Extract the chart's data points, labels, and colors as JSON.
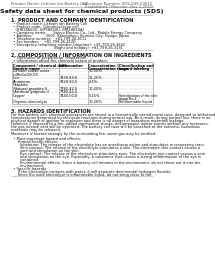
{
  "bg_color": "#ffffff",
  "header_left": "Product Name: Lithium Ion Battery Cell",
  "header_right_line1": "Substance Number: SDS-049-00610",
  "header_right_line2": "Established / Revision: Dec.1.2010",
  "title": "Safety data sheet for chemical products (SDS)",
  "section1_title": "1. PRODUCT AND COMPANY IDENTIFICATION",
  "section1_lines": [
    "  • Product name: Lithium Ion Battery Cell",
    "  • Product code: Cylindrical-type cell",
    "    (IHR18650U, IHF18650U, IHR18650A)",
    "  • Company name:      Sanyo Electric Co., Ltd., Mobile Energy Company",
    "  • Address:            2001  Kamitaikou, Sumoto-City, Hyogo, Japan",
    "  • Telephone number:   +81-799-26-4111",
    "  • Fax number:    +81-799-26-4120",
    "  • Emergency telephone number (daytime): +81-799-26-3642",
    "                                      (Night and holiday): +81-799-26-3131"
  ],
  "section2_title": "2. COMPOSITION / INFORMATION ON INGREDIENTS",
  "section2_intro": "  • Substance or preparation: Preparation",
  "section2_sub": "  • Information about the chemical nature of product:",
  "col_headers_row1": [
    "Component / chemical name",
    "CAS number",
    "Concentration /\nConcentration range",
    "Classification and\nhazard labeling"
  ],
  "col_headers_row2": [
    "Generic name",
    "",
    "[30-50%]",
    ""
  ],
  "table_rows": [
    [
      "Lithium cobalt oxide",
      "-",
      "30-50%",
      ""
    ],
    [
      "(LiMnCoO2(O))",
      "",
      "",
      ""
    ],
    [
      "Iron",
      "7439-89-6",
      "15-25%",
      ""
    ],
    [
      "Aluminum",
      "7429-90-5",
      "2-5%",
      ""
    ],
    [
      "Graphite",
      "",
      "",
      ""
    ],
    [
      "(Natural graphite-I)",
      "7782-42-5",
      "10-20%",
      ""
    ],
    [
      "(Artificial graphite-I)",
      "7782-42-5",
      "",
      ""
    ],
    [
      "Copper",
      "7440-50-8",
      "5-15%",
      "Sensitization of the skin\ngroup No.2"
    ],
    [
      "Organic electrolyte",
      "-",
      "10-20%",
      "Inflammable liquid"
    ]
  ],
  "section3_title": "3. HAZARDS IDENTIFICATION",
  "section3_para1": "For this battery cell, chemical substances are stored in a hermetically sealed metal case, designed to withstand\ntemperatures generated by electrode reactions during normal use. As a result, during normal use, there is no\nphysical danger of ignition or explosion and there is no danger of hazardous materials leakage.",
  "section3_para2": "However, if exposed to a fire, added mechanical shocks, decomposed, winter storms without any measures,\nthe gas release vent will be operated. The battery cell case will be breached at the extreme, hazardous\nmaterials may be released.",
  "section3_para3": "Moreover, if heated strongly by the surrounding fire, some gas may be emitted.",
  "section3_bullet1": "  • Most important hazard and effects:",
  "section3_human": "      Human health effects:",
  "section3_inhale": "        Inhalation: The release of the electrolyte has an anesthesia action and stimulates in respiratory tract.",
  "section3_skin1": "        Skin contact: The release of the electrolyte stimulates a skin. The electrolyte skin contact causes a",
  "section3_skin2": "        sore and stimulation on the skin.",
  "section3_eye1": "        Eye contact: The release of the electrolyte stimulates eyes. The electrolyte eye contact causes a sore",
  "section3_eye2": "        and stimulation on the eye. Especially, a substance that causes a strong inflammation of the eye is",
  "section3_eye3": "        contained.",
  "section3_env1": "        Environmental effects: Since a battery cell remains in the environment, do not throw out it into the",
  "section3_env2": "        environment.",
  "section3_bullet2": "  • Specific hazards:",
  "section3_spec1": "      If the electrolyte contacts with water, it will generate detrimental hydrogen fluoride.",
  "section3_spec2": "      Since the used electrolyte is inflammable liquid, do not bring close to fire.",
  "footer_line": true
}
